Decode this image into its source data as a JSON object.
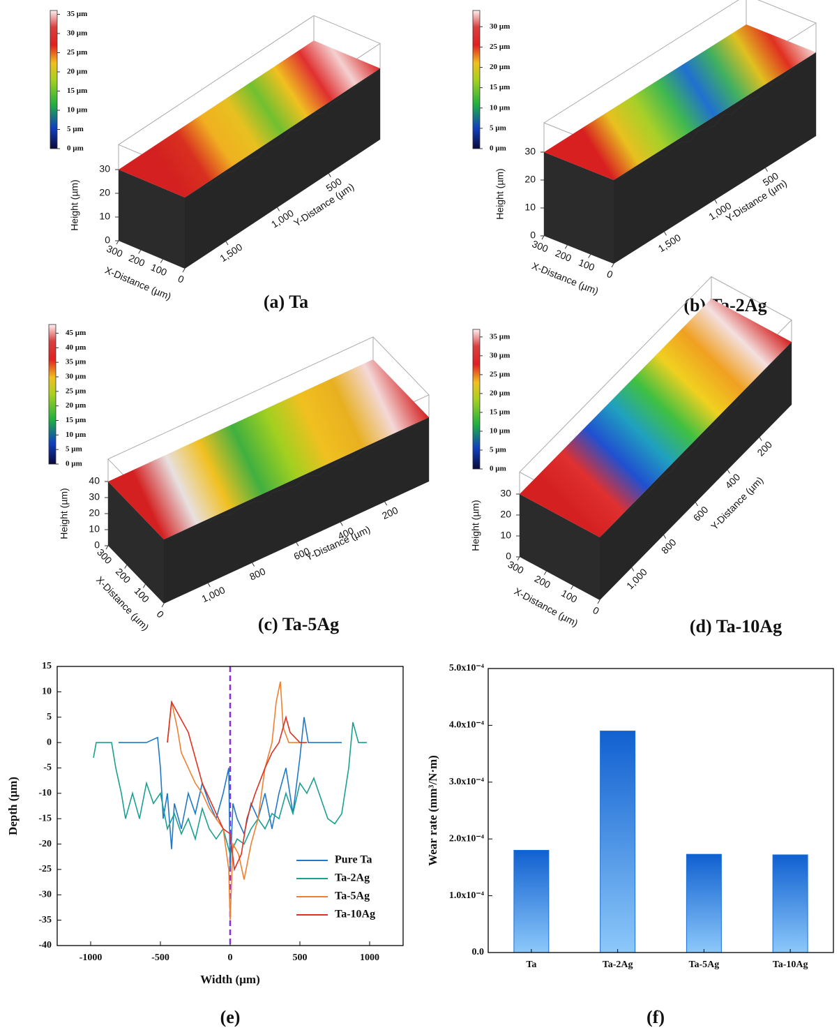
{
  "chart_data": [
    {
      "type": "surface3d",
      "caption": "(a) Ta",
      "colorbar_lim": [
        0,
        36
      ],
      "colorbar_ticks": [
        {
          "value": 0,
          "label": "0 µm"
        },
        {
          "value": 5,
          "label": "5 µm"
        },
        {
          "value": 10,
          "label": "10 µm"
        },
        {
          "value": 15,
          "label": "15 µm"
        },
        {
          "value": 20,
          "label": "20 µm"
        },
        {
          "value": 25,
          "label": "25 µm"
        },
        {
          "value": 30,
          "label": "30 µm"
        },
        {
          "value": 35,
          "label": "35 µm"
        }
      ],
      "zlabel": "Height (µm)",
      "zlim": [
        0,
        30
      ],
      "zticks": [
        0,
        10,
        20,
        30
      ],
      "xlabel": "X-Distance (µm)",
      "xlim": [
        0,
        300
      ],
      "xticks": [
        300,
        200,
        100,
        0
      ],
      "ylabel": "Y-Distance (µm)",
      "ylim": [
        0,
        1900
      ],
      "yticks": [
        500,
        {
          "value": 1000,
          "label": "1,000"
        },
        {
          "value": 1500,
          "label": "1,500"
        }
      ]
    },
    {
      "type": "surface3d",
      "caption": "(b) Ta-2Ag",
      "colorbar_lim": [
        0,
        34
      ],
      "colorbar_ticks": [
        {
          "value": 0,
          "label": "0 µm"
        },
        {
          "value": 5,
          "label": "5 µm"
        },
        {
          "value": 10,
          "label": "10 µm"
        },
        {
          "value": 15,
          "label": "15 µm"
        },
        {
          "value": 20,
          "label": "20 µm"
        },
        {
          "value": 25,
          "label": "25 µm"
        },
        {
          "value": 30,
          "label": "30 µm"
        }
      ],
      "zlabel": "Height (µm)",
      "zlim": [
        0,
        30
      ],
      "zticks": [
        0,
        10,
        20,
        30
      ],
      "xlabel": "X-Distance (µm)",
      "xlim": [
        0,
        300
      ],
      "xticks": [
        300,
        200,
        100,
        0
      ],
      "ylabel": "Y-Distance (µm)",
      "ylim": [
        0,
        2000
      ],
      "yticks": [
        500,
        {
          "value": 1000,
          "label": "1,000"
        },
        {
          "value": 1500,
          "label": "1,500"
        }
      ]
    },
    {
      "type": "surface3d",
      "caption": "(c) Ta-5Ag",
      "colorbar_lim": [
        0,
        48
      ],
      "colorbar_ticks": [
        {
          "value": 0,
          "label": "0 µm"
        },
        {
          "value": 5,
          "label": "5 µm"
        },
        {
          "value": 10,
          "label": "10 µm"
        },
        {
          "value": 15,
          "label": "15 µm"
        },
        {
          "value": 20,
          "label": "20 µm"
        },
        {
          "value": 25,
          "label": "25 µm"
        },
        {
          "value": 30,
          "label": "30 µm"
        },
        {
          "value": 35,
          "label": "35 µm"
        },
        {
          "value": 40,
          "label": "40 µm"
        },
        {
          "value": 45,
          "label": "45 µm"
        }
      ],
      "zlabel": "Height (µm)",
      "zlim": [
        0,
        40
      ],
      "zticks": [
        0,
        10,
        20,
        30,
        40
      ],
      "xlabel": "X-Distance (µm)",
      "xlim": [
        0,
        300
      ],
      "xticks": [
        300,
        200,
        100,
        0
      ],
      "ylabel": "Y-Distance (µm)",
      "ylim": [
        0,
        1200
      ],
      "yticks": [
        200,
        400,
        600,
        800,
        {
          "value": 1000,
          "label": "1,000"
        }
      ]
    },
    {
      "type": "surface3d",
      "caption": "(d) Ta-10Ag",
      "colorbar_lim": [
        0,
        37
      ],
      "colorbar_ticks": [
        {
          "value": 0,
          "label": "0 µm"
        },
        {
          "value": 5,
          "label": "5 µm"
        },
        {
          "value": 10,
          "label": "10 µm"
        },
        {
          "value": 15,
          "label": "15 µm"
        },
        {
          "value": 20,
          "label": "20 µm"
        },
        {
          "value": 25,
          "label": "25 µm"
        },
        {
          "value": 30,
          "label": "30 µm"
        },
        {
          "value": 35,
          "label": "35 µm"
        }
      ],
      "zlabel": "Height (µm)",
      "zlim": [
        0,
        30
      ],
      "zticks": [
        0,
        10,
        20,
        30
      ],
      "xlabel": "X-Distance (µm)",
      "xlim": [
        0,
        300
      ],
      "xticks": [
        300,
        200,
        100,
        0
      ],
      "ylabel": "Y-Distance (µm)",
      "ylim": [
        0,
        1200
      ],
      "yticks": [
        200,
        400,
        600,
        800,
        {
          "value": 1000,
          "label": "1,000"
        }
      ]
    },
    {
      "type": "line",
      "caption": "(e)",
      "xlabel": "Width (µm)",
      "ylabel": "Depth (µm)",
      "xlim": [
        -1240,
        1240
      ],
      "xticks": [
        -1000,
        -500,
        0,
        500,
        1000
      ],
      "ylim": [
        -40,
        15
      ],
      "yticks": [
        -40,
        -35,
        -30,
        -25,
        -20,
        -15,
        -10,
        -5,
        0,
        5,
        10,
        15
      ],
      "vline": 0,
      "vline_color": "#8a2be2",
      "legend": "lower right",
      "series": [
        {
          "name": "Pure Ta",
          "color": "#1f78c8",
          "x": [
            -800,
            -700,
            -600,
            -520,
            -500,
            -480,
            -450,
            -420,
            -400,
            -350,
            -300,
            -250,
            -200,
            -150,
            -100,
            -50,
            -10,
            0,
            20,
            50,
            100,
            150,
            200,
            250,
            300,
            350,
            400,
            450,
            500,
            530,
            560,
            600,
            700,
            800
          ],
          "values": [
            0,
            0,
            0,
            1,
            -5,
            -15,
            -10,
            -21,
            -12,
            -17,
            -10,
            -14,
            -8,
            -12,
            -15,
            -10,
            -5,
            -25,
            -12,
            -15,
            -18,
            -12,
            -15,
            -10,
            -17,
            -10,
            -5,
            -14,
            -3,
            5,
            0,
            0,
            0,
            0
          ]
        },
        {
          "name": "Ta-2Ag",
          "color": "#1aa08f",
          "x": [
            -980,
            -960,
            -900,
            -850,
            -820,
            -780,
            -750,
            -700,
            -650,
            -600,
            -550,
            -500,
            -450,
            -400,
            -350,
            -300,
            -250,
            -200,
            -150,
            -100,
            -50,
            0,
            50,
            100,
            150,
            200,
            250,
            300,
            350,
            400,
            450,
            500,
            550,
            600,
            650,
            700,
            750,
            800,
            850,
            880,
            920,
            980
          ],
          "values": [
            -3,
            0,
            0,
            0,
            -5,
            -10,
            -15,
            -10,
            -15,
            -8,
            -12,
            -10,
            -17,
            -14,
            -18,
            -15,
            -19,
            -13,
            -17,
            -19,
            -17,
            -22,
            -19,
            -20,
            -17,
            -15,
            -17,
            -14,
            -15,
            -10,
            -14,
            -8,
            -10,
            -7,
            -11,
            -15,
            -16,
            -14,
            -5,
            4,
            0,
            0
          ]
        },
        {
          "name": "Ta-5Ag",
          "color": "#f08030",
          "x": [
            -450,
            -420,
            -380,
            -350,
            -300,
            -250,
            -200,
            -150,
            -100,
            -50,
            -10,
            0,
            20,
            60,
            100,
            150,
            200,
            250,
            300,
            330,
            360,
            380,
            420,
            500
          ],
          "values": [
            0,
            8,
            3,
            -2,
            -5,
            -8,
            -10,
            -13,
            -15,
            -17,
            -25,
            -35,
            -20,
            -22,
            -27,
            -20,
            -15,
            -5,
            0,
            8,
            12,
            3,
            0,
            0
          ]
        },
        {
          "name": "Ta-10Ag",
          "color": "#e03020",
          "x": [
            -450,
            -420,
            -380,
            -300,
            -250,
            -200,
            -150,
            -100,
            -50,
            0,
            30,
            80,
            120,
            180,
            250,
            300,
            350,
            400,
            430,
            500,
            550
          ],
          "values": [
            0,
            8,
            6,
            2,
            -3,
            -8,
            -11,
            -14,
            -17,
            -18,
            -25,
            -22,
            -15,
            -10,
            -5,
            -2,
            0,
            5,
            2,
            0,
            0
          ]
        }
      ]
    },
    {
      "type": "bar",
      "caption": "(f)",
      "ylabel": "Wear rate (mm³/N·m)",
      "categories": [
        "Ta",
        "Ta-2Ag",
        "Ta-5Ag",
        "Ta-10Ag"
      ],
      "values": [
        0.00018,
        0.00039,
        0.000173,
        0.000172
      ],
      "color": "#1a6fd8",
      "ylim": [
        0,
        0.0005
      ],
      "yticks": [
        {
          "value": 0,
          "label": "0.0"
        },
        {
          "value": 0.0001,
          "label": "1.0x10⁻⁴"
        },
        {
          "value": 0.0002,
          "label": "2.0x10⁻⁴"
        },
        {
          "value": 0.0003,
          "label": "3.0x10⁻⁴"
        },
        {
          "value": 0.0004,
          "label": "4.0x10⁻⁴"
        },
        {
          "value": 0.0005,
          "label": "5.0x10⁻⁴"
        }
      ]
    }
  ]
}
